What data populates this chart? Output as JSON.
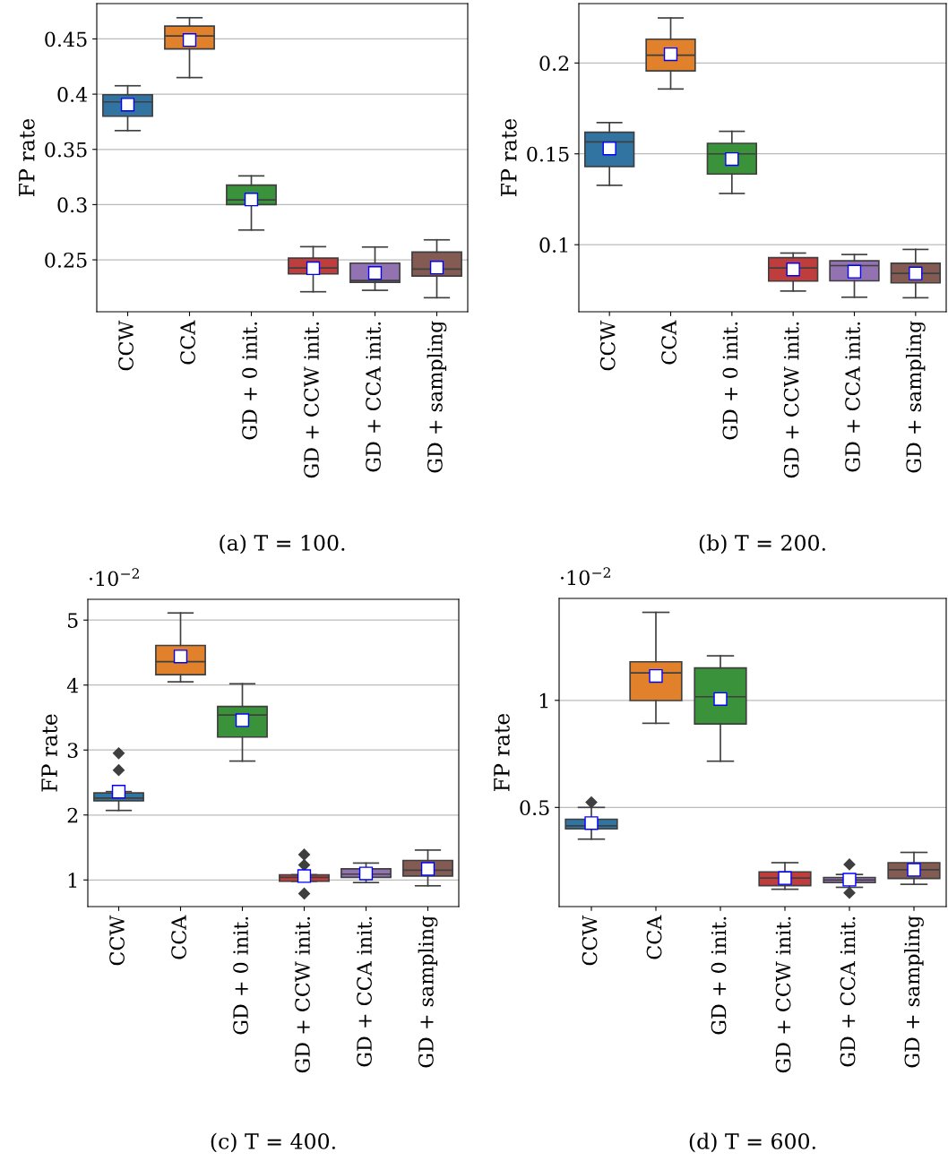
{
  "chart_data": [
    {
      "type": "box",
      "ylabel": "FP rate",
      "annotations": [
        "(a) T = 100."
      ],
      "categories": [
        "CCW",
        "CCA",
        "GD + 0 init.",
        "GD + CCW init.",
        "GD + CCA init.",
        "GD + sampling"
      ],
      "colors": [
        "#3274a1",
        "#e1812c",
        "#3a923a",
        "#c03d3e",
        "#9372b2",
        "#845b53"
      ],
      "ylim": [
        0.203,
        0.482
      ],
      "yticks": [
        0.25,
        0.3,
        0.35,
        0.4,
        0.45
      ],
      "grid": "y",
      "boxes": [
        {
          "low": 0.367,
          "q1": 0.38,
          "median": 0.393,
          "q3": 0.3995,
          "high": 0.4076,
          "mean": 0.3905
        },
        {
          "low": 0.415,
          "q1": 0.441,
          "median": 0.4527,
          "q3": 0.4616,
          "high": 0.4692,
          "mean": 0.449
        },
        {
          "low": 0.277,
          "q1": 0.3,
          "median": 0.3043,
          "q3": 0.3176,
          "high": 0.326,
          "mean": 0.3046
        },
        {
          "low": 0.2211,
          "q1": 0.2373,
          "median": 0.2427,
          "q3": 0.2516,
          "high": 0.2619,
          "mean": 0.2424
        },
        {
          "low": 0.2224,
          "q1": 0.2297,
          "median": 0.2313,
          "q3": 0.247,
          "high": 0.2616,
          "mean": 0.2381
        },
        {
          "low": 0.2157,
          "q1": 0.2354,
          "median": 0.2416,
          "q3": 0.257,
          "high": 0.2681,
          "mean": 0.243
        }
      ]
    },
    {
      "type": "box",
      "ylabel": "FP rate",
      "annotations": [
        "(b) T = 200."
      ],
      "categories": [
        "CCW",
        "CCA",
        "GD + 0 init.",
        "GD + CCW init.",
        "GD + CCA init.",
        "GD + sampling"
      ],
      "colors": [
        "#3274a1",
        "#e1812c",
        "#3a923a",
        "#c03d3e",
        "#9372b2",
        "#845b53"
      ],
      "ylim": [
        0.0631,
        0.2327
      ],
      "yticks": [
        0.1,
        0.15,
        0.2
      ],
      "grid": "y",
      "boxes": [
        {
          "low": 0.1327,
          "q1": 0.143,
          "median": 0.1566,
          "q3": 0.1619,
          "high": 0.1672,
          "mean": 0.1529
        },
        {
          "low": 0.1857,
          "q1": 0.1957,
          "median": 0.2043,
          "q3": 0.2131,
          "high": 0.2248,
          "mean": 0.2048
        },
        {
          "low": 0.1282,
          "q1": 0.1389,
          "median": 0.15,
          "q3": 0.1558,
          "high": 0.1624,
          "mean": 0.1471
        },
        {
          "low": 0.0745,
          "q1": 0.08,
          "median": 0.0872,
          "q3": 0.0929,
          "high": 0.0954,
          "mean": 0.0864
        },
        {
          "low": 0.0711,
          "q1": 0.0801,
          "median": 0.0885,
          "q3": 0.0911,
          "high": 0.0946,
          "mean": 0.0852
        },
        {
          "low": 0.0708,
          "q1": 0.079,
          "median": 0.0842,
          "q3": 0.0898,
          "high": 0.0974,
          "mean": 0.0842
        }
      ]
    },
    {
      "type": "box",
      "ylabel": "FP rate",
      "annotations": [
        "(c) T = 400.",
        "·10$^{−2}$"
      ],
      "categories": [
        "CCW",
        "CCA",
        "GD + 0 init.",
        "GD + CCW init.",
        "GD + CCA init.",
        "GD + sampling"
      ],
      "colors": [
        "#3274a1",
        "#e1812c",
        "#3a923a",
        "#c03d3e",
        "#9372b2",
        "#845b53"
      ],
      "ylim": [
        0.59,
        5.32
      ],
      "yticks": [
        1,
        2,
        3,
        4,
        5
      ],
      "grid": "y",
      "boxes": [
        {
          "low": 2.07,
          "q1": 2.22,
          "median": 2.26,
          "q3": 2.34,
          "high": 2.36,
          "mean": 2.36,
          "outliers": [
            2.69,
            2.95
          ]
        },
        {
          "low": 4.05,
          "q1": 4.16,
          "median": 4.36,
          "q3": 4.61,
          "high": 5.11,
          "mean": 4.44
        },
        {
          "low": 2.83,
          "q1": 3.2,
          "median": 3.54,
          "q3": 3.67,
          "high": 4.02,
          "mean": 3.46
        },
        {
          "low": 0.98,
          "q1": 0.98,
          "median": 1.04,
          "q3": 1.08,
          "high": 1.08,
          "mean": 1.06,
          "outliers": [
            0.79,
            1.23,
            1.39
          ]
        },
        {
          "low": 0.96,
          "q1": 1.04,
          "median": 1.09,
          "q3": 1.17,
          "high": 1.26,
          "mean": 1.1
        },
        {
          "low": 0.91,
          "q1": 1.06,
          "median": 1.15,
          "q3": 1.3,
          "high": 1.46,
          "mean": 1.17
        }
      ]
    },
    {
      "type": "box",
      "ylabel": "FP rate",
      "annotations": [
        "(d) T = 600.",
        "·10$^{−2}$"
      ],
      "categories": [
        "CCW",
        "CCA",
        "GD + 0 init.",
        "GD + CCW init.",
        "GD + CCA init.",
        "GD + sampling"
      ],
      "colors": [
        "#3274a1",
        "#e1812c",
        "#3a923a",
        "#c03d3e",
        "#9372b2",
        "#845b53"
      ],
      "ylim": [
        0.037,
        1.476
      ],
      "yticks": [
        0.5,
        1
      ],
      "grid": "y",
      "boxes": [
        {
          "low": 0.352,
          "q1": 0.4,
          "median": 0.414,
          "q3": 0.445,
          "high": 0.5,
          "mean": 0.427,
          "outliers": [
            0.524
          ]
        },
        {
          "low": 0.893,
          "q1": 0.999,
          "median": 1.128,
          "q3": 1.18,
          "high": 1.411,
          "mean": 1.114
        },
        {
          "low": 0.716,
          "q1": 0.89,
          "median": 1.017,
          "q3": 1.151,
          "high": 1.208,
          "mean": 1.006
        },
        {
          "low": 0.118,
          "q1": 0.135,
          "median": 0.17,
          "q3": 0.199,
          "high": 0.242,
          "mean": 0.17
        },
        {
          "low": 0.127,
          "q1": 0.149,
          "median": 0.161,
          "q3": 0.173,
          "high": 0.187,
          "mean": 0.163,
          "outliers": [
            0.101,
            0.234
          ]
        },
        {
          "low": 0.141,
          "q1": 0.168,
          "median": 0.209,
          "q3": 0.242,
          "high": 0.29,
          "mean": 0.209
        }
      ]
    }
  ]
}
